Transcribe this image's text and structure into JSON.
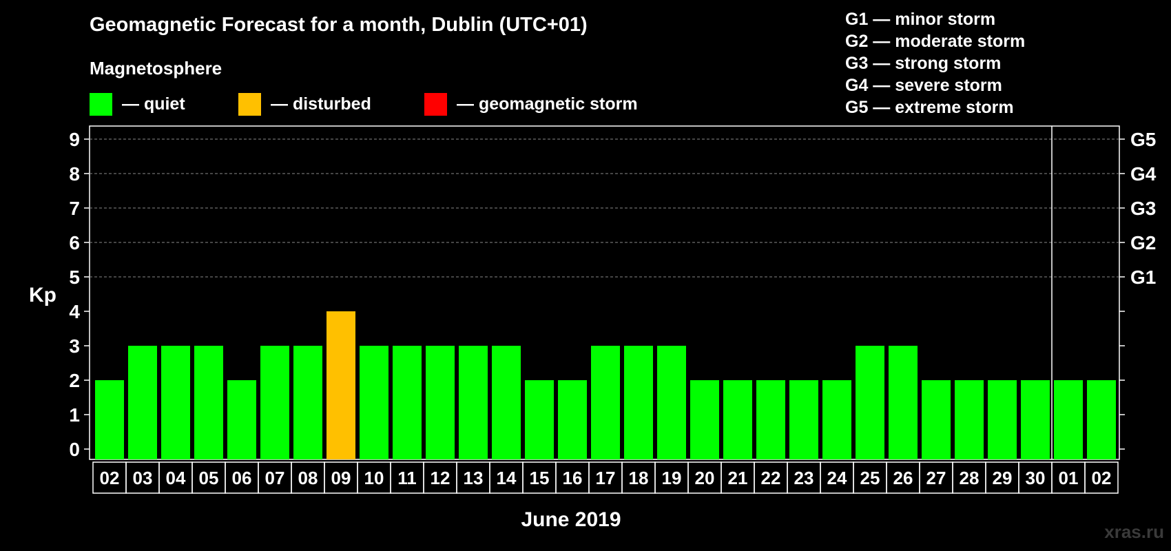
{
  "chart_data": {
    "type": "bar",
    "title": "Geomagnetic Forecast for a month, Dublin (UTC+01)",
    "subtitle": "Magnetosphere",
    "xlabel": "June 2019",
    "ylabel": "Kp",
    "ylim": [
      0,
      9
    ],
    "yticks": [
      "0",
      "1",
      "2",
      "3",
      "4",
      "5",
      "6",
      "7",
      "8",
      "9"
    ],
    "right_ticks": [
      {
        "value": 5,
        "label": "G1"
      },
      {
        "value": 6,
        "label": "G2"
      },
      {
        "value": 7,
        "label": "G3"
      },
      {
        "value": 8,
        "label": "G4"
      },
      {
        "value": 9,
        "label": "G5"
      }
    ],
    "categories": [
      "02",
      "03",
      "04",
      "05",
      "06",
      "07",
      "08",
      "09",
      "10",
      "11",
      "12",
      "13",
      "14",
      "15",
      "16",
      "17",
      "18",
      "19",
      "20",
      "21",
      "22",
      "23",
      "24",
      "25",
      "26",
      "27",
      "28",
      "29",
      "30",
      "01",
      "02"
    ],
    "values": [
      2,
      3,
      3,
      3,
      2,
      3,
      3,
      4,
      3,
      3,
      3,
      3,
      3,
      2,
      2,
      3,
      3,
      3,
      2,
      2,
      2,
      2,
      2,
      3,
      3,
      2,
      2,
      2,
      2,
      2,
      2
    ],
    "status": [
      "quiet",
      "quiet",
      "quiet",
      "quiet",
      "quiet",
      "quiet",
      "quiet",
      "disturbed",
      "quiet",
      "quiet",
      "quiet",
      "quiet",
      "quiet",
      "quiet",
      "quiet",
      "quiet",
      "quiet",
      "quiet",
      "quiet",
      "quiet",
      "quiet",
      "quiet",
      "quiet",
      "quiet",
      "quiet",
      "quiet",
      "quiet",
      "quiet",
      "quiet",
      "quiet",
      "quiet"
    ],
    "month_boundary_index": 29,
    "grid": "dashed at levels 5-9",
    "legend": [
      {
        "key": "quiet",
        "label": "— quiet",
        "color": "#00ff00"
      },
      {
        "key": "disturbed",
        "label": "— disturbed",
        "color": "#ffc000"
      },
      {
        "key": "storm",
        "label": "— geomagnetic storm",
        "color": "#ff0000"
      }
    ],
    "storm_scale": [
      "G1 — minor storm",
      "G2 — moderate storm",
      "G3 — strong storm",
      "G4 — severe storm",
      "G5 — extreme storm"
    ]
  },
  "watermark": "xras.ru"
}
